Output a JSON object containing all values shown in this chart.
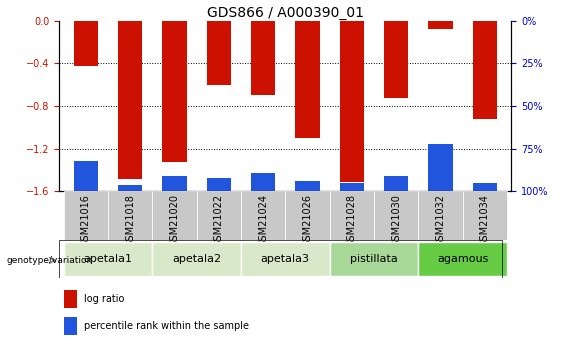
{
  "title": "GDS866 / A000390_01",
  "samples": [
    "GSM21016",
    "GSM21018",
    "GSM21020",
    "GSM21022",
    "GSM21024",
    "GSM21026",
    "GSM21028",
    "GSM21030",
    "GSM21032",
    "GSM21034"
  ],
  "log_ratio": [
    -0.42,
    -1.48,
    -1.32,
    -0.6,
    -0.7,
    -1.1,
    -1.51,
    -0.72,
    -0.08,
    -0.92
  ],
  "percentile_rank": [
    18,
    4,
    9,
    8,
    11,
    6,
    5,
    9,
    28,
    5
  ],
  "groups": [
    {
      "label": "apetala1",
      "indices": [
        0,
        1
      ],
      "color": "#d8e8c8"
    },
    {
      "label": "apetala2",
      "indices": [
        2,
        3
      ],
      "color": "#d8e8c8"
    },
    {
      "label": "apetala3",
      "indices": [
        4,
        5
      ],
      "color": "#d8e8c8"
    },
    {
      "label": "pistillata",
      "indices": [
        6,
        7
      ],
      "color": "#a8d898"
    },
    {
      "label": "agamous",
      "indices": [
        8,
        9
      ],
      "color": "#66cc44"
    }
  ],
  "ylim_left": [
    -1.6,
    0
  ],
  "ylim_right": [
    0,
    100
  ],
  "yticks_left": [
    0,
    -0.4,
    -0.8,
    -1.2,
    -1.6
  ],
  "yticks_right": [
    0,
    25,
    50,
    75,
    100
  ],
  "bar_color": "#cc1100",
  "blue_color": "#2255dd",
  "sample_bg_color": "#c8c8c8",
  "xlabel_color": "#cc1100",
  "ylabel_right_color": "#0000cc",
  "title_fontsize": 10,
  "tick_fontsize": 7,
  "group_label_fontsize": 8,
  "bar_width": 0.55
}
